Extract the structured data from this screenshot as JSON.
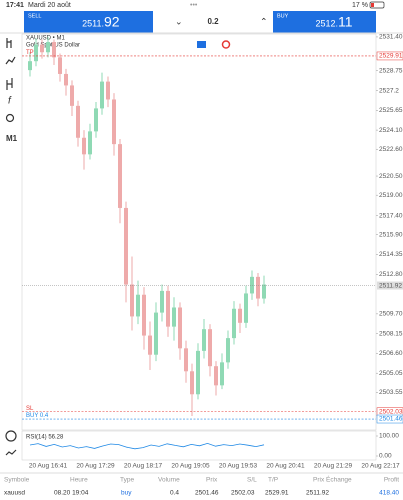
{
  "status_bar": {
    "time": "17:41",
    "date": "Mardi 20 août",
    "battery": "17 %"
  },
  "trade_bar": {
    "sell": {
      "label": "SELL",
      "price_main": "2511.",
      "price_big": "92"
    },
    "volume": "0.2",
    "buy": {
      "label": "BUY",
      "price_main": "2512.",
      "price_big": "11"
    }
  },
  "left_toolbar": {
    "timeframe": "M1"
  },
  "chart": {
    "type": "candlestick",
    "symbol": "XAUUSD • M1",
    "description": "Gold Spot US Dollar",
    "up_color": "#8fd9b4",
    "down_color": "#eeaaaa",
    "ylim": [
      2500.6,
      2531.63
    ],
    "yticks": [
      {
        "value": 2531.4,
        "label": "2531.40"
      },
      2528.75,
      2527.2,
      {
        "value": 2525.65,
        "label": "2525.65"
      },
      {
        "value": 2524.1,
        "label": "2524.10"
      },
      {
        "value": 2522.6,
        "label": "2522.60"
      },
      {
        "value": 2520.5,
        "label": "2520.50"
      },
      {
        "value": 2519.0,
        "label": "2519.00"
      },
      {
        "value": 2517.4,
        "label": "2517.40"
      },
      {
        "value": 2515.9,
        "label": "2515.90"
      },
      2514.35,
      {
        "value": 2512.8,
        "label": "2512.80"
      },
      {
        "value": 2509.7,
        "label": "2509.70"
      },
      2508.15,
      {
        "value": 2506.6,
        "label": "2506.60"
      },
      2505.05,
      2503.55
    ],
    "levels": [
      {
        "name": "TP",
        "value": 2529.91,
        "color": "#e53935"
      },
      {
        "name": "SL",
        "value": 2502.03,
        "color": "#e53935"
      },
      {
        "name": "BUY 0.4",
        "value": 2501.46,
        "color": "#1e88e5"
      }
    ],
    "bid": 2511.92,
    "xticks": [
      "20 Aug 16:41",
      "20 Aug 17:29",
      "20 Aug 18:17",
      "20 Aug 19:05",
      "20 Aug 19:53",
      "20 Aug 20:41",
      "20 Aug 21:29",
      "20 Aug 22:17"
    ],
    "candles": [
      {
        "open": 2528.8,
        "high": 2530.2,
        "low": 2528.3,
        "close": 2529.5
      },
      {
        "open": 2529.5,
        "high": 2531.3,
        "low": 2529.1,
        "close": 2530.8
      },
      {
        "open": 2530.8,
        "high": 2531.2,
        "low": 2529.7,
        "close": 2530.2
      },
      {
        "open": 2530.2,
        "high": 2531.4,
        "low": 2529.8,
        "close": 2531.0
      },
      {
        "open": 2531.0,
        "high": 2531.2,
        "low": 2529.2,
        "close": 2529.8
      },
      {
        "open": 2529.8,
        "high": 2530.1,
        "low": 2527.9,
        "close": 2528.5
      },
      {
        "open": 2528.5,
        "high": 2528.9,
        "low": 2526.8,
        "close": 2527.6
      },
      {
        "open": 2527.6,
        "high": 2528.0,
        "low": 2525.2,
        "close": 2526.0
      },
      {
        "open": 2526.0,
        "high": 2526.4,
        "low": 2522.8,
        "close": 2523.5
      },
      {
        "open": 2523.5,
        "high": 2524.1,
        "low": 2521.0,
        "close": 2522.2
      },
      {
        "open": 2522.2,
        "high": 2524.6,
        "low": 2521.8,
        "close": 2524.0
      },
      {
        "open": 2524.0,
        "high": 2526.3,
        "low": 2523.5,
        "close": 2525.8
      },
      {
        "open": 2525.8,
        "high": 2528.6,
        "low": 2525.3,
        "close": 2527.9
      },
      {
        "open": 2527.9,
        "high": 2528.3,
        "low": 2525.9,
        "close": 2526.5
      },
      {
        "open": 2526.5,
        "high": 2527.0,
        "low": 2522.1,
        "close": 2523.0
      },
      {
        "open": 2523.0,
        "high": 2523.4,
        "low": 2516.8,
        "close": 2518.0
      },
      {
        "open": 2518.0,
        "high": 2518.5,
        "low": 2510.6,
        "close": 2512.0
      },
      {
        "open": 2512.0,
        "high": 2514.2,
        "low": 2508.4,
        "close": 2509.5
      },
      {
        "open": 2509.5,
        "high": 2512.3,
        "low": 2508.9,
        "close": 2511.2
      },
      {
        "open": 2511.2,
        "high": 2511.8,
        "low": 2506.9,
        "close": 2508.0
      },
      {
        "open": 2508.0,
        "high": 2509.1,
        "low": 2505.3,
        "close": 2506.5
      },
      {
        "open": 2506.5,
        "high": 2510.6,
        "low": 2506.0,
        "close": 2509.8
      },
      {
        "open": 2509.8,
        "high": 2512.0,
        "low": 2509.1,
        "close": 2511.5
      },
      {
        "open": 2511.5,
        "high": 2511.9,
        "low": 2507.9,
        "close": 2508.7
      },
      {
        "open": 2508.7,
        "high": 2511.0,
        "low": 2507.6,
        "close": 2510.2
      },
      {
        "open": 2510.2,
        "high": 2510.6,
        "low": 2506.1,
        "close": 2507.0
      },
      {
        "open": 2507.0,
        "high": 2507.6,
        "low": 2504.3,
        "close": 2505.2
      },
      {
        "open": 2505.2,
        "high": 2505.8,
        "low": 2501.7,
        "close": 2503.4
      },
      {
        "open": 2503.4,
        "high": 2507.4,
        "low": 2503.0,
        "close": 2506.8
      },
      {
        "open": 2506.8,
        "high": 2509.3,
        "low": 2506.2,
        "close": 2508.5
      },
      {
        "open": 2508.5,
        "high": 2508.9,
        "low": 2504.8,
        "close": 2505.6
      },
      {
        "open": 2505.6,
        "high": 2506.0,
        "low": 2503.3,
        "close": 2504.1
      },
      {
        "open": 2504.1,
        "high": 2506.6,
        "low": 2503.8,
        "close": 2505.9
      },
      {
        "open": 2505.9,
        "high": 2508.4,
        "low": 2505.4,
        "close": 2507.8
      },
      {
        "open": 2507.8,
        "high": 2510.7,
        "low": 2507.3,
        "close": 2510.1
      },
      {
        "open": 2510.1,
        "high": 2510.5,
        "low": 2508.2,
        "close": 2509.0
      },
      {
        "open": 2509.0,
        "high": 2511.9,
        "low": 2508.6,
        "close": 2511.3
      },
      {
        "open": 2511.3,
        "high": 2513.1,
        "low": 2510.8,
        "close": 2512.6
      },
      {
        "open": 2512.6,
        "high": 2512.9,
        "low": 2510.3,
        "close": 2510.9
      },
      {
        "open": 2510.9,
        "high": 2512.7,
        "low": 2510.5,
        "close": 2512.0
      }
    ],
    "rsi": {
      "label": "RSI(14) 56.28",
      "color": "#1e88e5",
      "ylim": [
        0,
        100
      ],
      "yticks": [
        {
          "value": 100,
          "label": "100.00"
        },
        {
          "value": 0,
          "label": "0.00"
        }
      ],
      "values": [
        55,
        62,
        48,
        58,
        45,
        52,
        40,
        47,
        38,
        50,
        60,
        57,
        44,
        36,
        42,
        55,
        48,
        61,
        53,
        46,
        58,
        51,
        63,
        49,
        57,
        52,
        60,
        54,
        47,
        56
      ]
    }
  },
  "positions": {
    "headers": [
      "Symbole",
      "Heure",
      "Type",
      "Volume",
      "Prix",
      "S/L",
      "T/P",
      "Prix Échange",
      "Profit"
    ],
    "rows": [
      [
        "xauusd",
        "08.20 19:04",
        "buy",
        "0.4",
        "2501.46",
        "2502.03",
        "2529.91",
        "2511.92",
        "418.40"
      ]
    ]
  }
}
